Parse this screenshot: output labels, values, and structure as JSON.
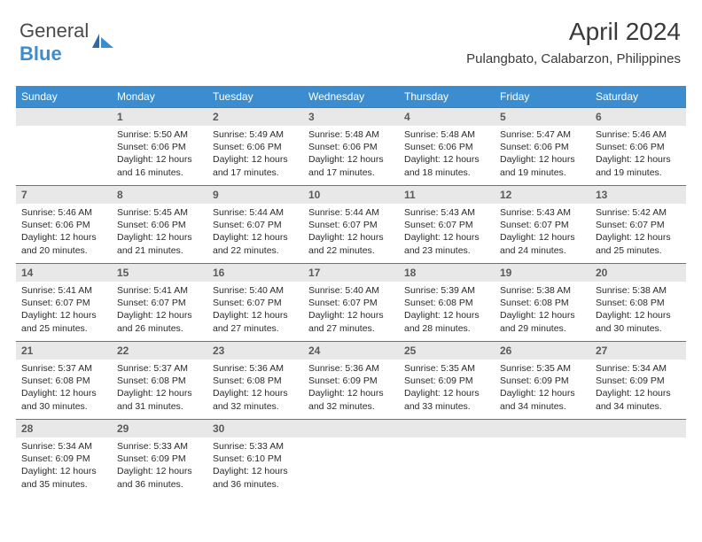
{
  "logo": {
    "textGray": "General",
    "textBlue": "Blue"
  },
  "header": {
    "title": "April 2024",
    "location": "Pulangbato, Calabarzon, Philippines"
  },
  "colors": {
    "headerBg": "#3c8dcf",
    "headerText": "#ffffff",
    "dayNumBg": "#e8e8e8",
    "dayNumBorder": "#4a7aa8",
    "bodyText": "#2a2a2a",
    "titleText": "#3a3a3a"
  },
  "layout": {
    "cols": 7,
    "rows": 5,
    "startCol": 1,
    "daysInMonth": 30
  },
  "dayHeaders": [
    "Sunday",
    "Monday",
    "Tuesday",
    "Wednesday",
    "Thursday",
    "Friday",
    "Saturday"
  ],
  "fields": [
    "sunriseLabel",
    "sunrise",
    "sunsetLabel",
    "sunset",
    "daylightLabel",
    "daylight"
  ],
  "labels": {
    "sunrise": "Sunrise: ",
    "sunset": "Sunset: ",
    "daylight": "Daylight: "
  },
  "days": [
    {
      "n": 1,
      "sunrise": "5:50 AM",
      "sunset": "6:06 PM",
      "daylight": "12 hours and 16 minutes."
    },
    {
      "n": 2,
      "sunrise": "5:49 AM",
      "sunset": "6:06 PM",
      "daylight": "12 hours and 17 minutes."
    },
    {
      "n": 3,
      "sunrise": "5:48 AM",
      "sunset": "6:06 PM",
      "daylight": "12 hours and 17 minutes."
    },
    {
      "n": 4,
      "sunrise": "5:48 AM",
      "sunset": "6:06 PM",
      "daylight": "12 hours and 18 minutes."
    },
    {
      "n": 5,
      "sunrise": "5:47 AM",
      "sunset": "6:06 PM",
      "daylight": "12 hours and 19 minutes."
    },
    {
      "n": 6,
      "sunrise": "5:46 AM",
      "sunset": "6:06 PM",
      "daylight": "12 hours and 19 minutes."
    },
    {
      "n": 7,
      "sunrise": "5:46 AM",
      "sunset": "6:06 PM",
      "daylight": "12 hours and 20 minutes."
    },
    {
      "n": 8,
      "sunrise": "5:45 AM",
      "sunset": "6:06 PM",
      "daylight": "12 hours and 21 minutes."
    },
    {
      "n": 9,
      "sunrise": "5:44 AM",
      "sunset": "6:07 PM",
      "daylight": "12 hours and 22 minutes."
    },
    {
      "n": 10,
      "sunrise": "5:44 AM",
      "sunset": "6:07 PM",
      "daylight": "12 hours and 22 minutes."
    },
    {
      "n": 11,
      "sunrise": "5:43 AM",
      "sunset": "6:07 PM",
      "daylight": "12 hours and 23 minutes."
    },
    {
      "n": 12,
      "sunrise": "5:43 AM",
      "sunset": "6:07 PM",
      "daylight": "12 hours and 24 minutes."
    },
    {
      "n": 13,
      "sunrise": "5:42 AM",
      "sunset": "6:07 PM",
      "daylight": "12 hours and 25 minutes."
    },
    {
      "n": 14,
      "sunrise": "5:41 AM",
      "sunset": "6:07 PM",
      "daylight": "12 hours and 25 minutes."
    },
    {
      "n": 15,
      "sunrise": "5:41 AM",
      "sunset": "6:07 PM",
      "daylight": "12 hours and 26 minutes."
    },
    {
      "n": 16,
      "sunrise": "5:40 AM",
      "sunset": "6:07 PM",
      "daylight": "12 hours and 27 minutes."
    },
    {
      "n": 17,
      "sunrise": "5:40 AM",
      "sunset": "6:07 PM",
      "daylight": "12 hours and 27 minutes."
    },
    {
      "n": 18,
      "sunrise": "5:39 AM",
      "sunset": "6:08 PM",
      "daylight": "12 hours and 28 minutes."
    },
    {
      "n": 19,
      "sunrise": "5:38 AM",
      "sunset": "6:08 PM",
      "daylight": "12 hours and 29 minutes."
    },
    {
      "n": 20,
      "sunrise": "5:38 AM",
      "sunset": "6:08 PM",
      "daylight": "12 hours and 30 minutes."
    },
    {
      "n": 21,
      "sunrise": "5:37 AM",
      "sunset": "6:08 PM",
      "daylight": "12 hours and 30 minutes."
    },
    {
      "n": 22,
      "sunrise": "5:37 AM",
      "sunset": "6:08 PM",
      "daylight": "12 hours and 31 minutes."
    },
    {
      "n": 23,
      "sunrise": "5:36 AM",
      "sunset": "6:08 PM",
      "daylight": "12 hours and 32 minutes."
    },
    {
      "n": 24,
      "sunrise": "5:36 AM",
      "sunset": "6:09 PM",
      "daylight": "12 hours and 32 minutes."
    },
    {
      "n": 25,
      "sunrise": "5:35 AM",
      "sunset": "6:09 PM",
      "daylight": "12 hours and 33 minutes."
    },
    {
      "n": 26,
      "sunrise": "5:35 AM",
      "sunset": "6:09 PM",
      "daylight": "12 hours and 34 minutes."
    },
    {
      "n": 27,
      "sunrise": "5:34 AM",
      "sunset": "6:09 PM",
      "daylight": "12 hours and 34 minutes."
    },
    {
      "n": 28,
      "sunrise": "5:34 AM",
      "sunset": "6:09 PM",
      "daylight": "12 hours and 35 minutes."
    },
    {
      "n": 29,
      "sunrise": "5:33 AM",
      "sunset": "6:09 PM",
      "daylight": "12 hours and 36 minutes."
    },
    {
      "n": 30,
      "sunrise": "5:33 AM",
      "sunset": "6:10 PM",
      "daylight": "12 hours and 36 minutes."
    }
  ]
}
